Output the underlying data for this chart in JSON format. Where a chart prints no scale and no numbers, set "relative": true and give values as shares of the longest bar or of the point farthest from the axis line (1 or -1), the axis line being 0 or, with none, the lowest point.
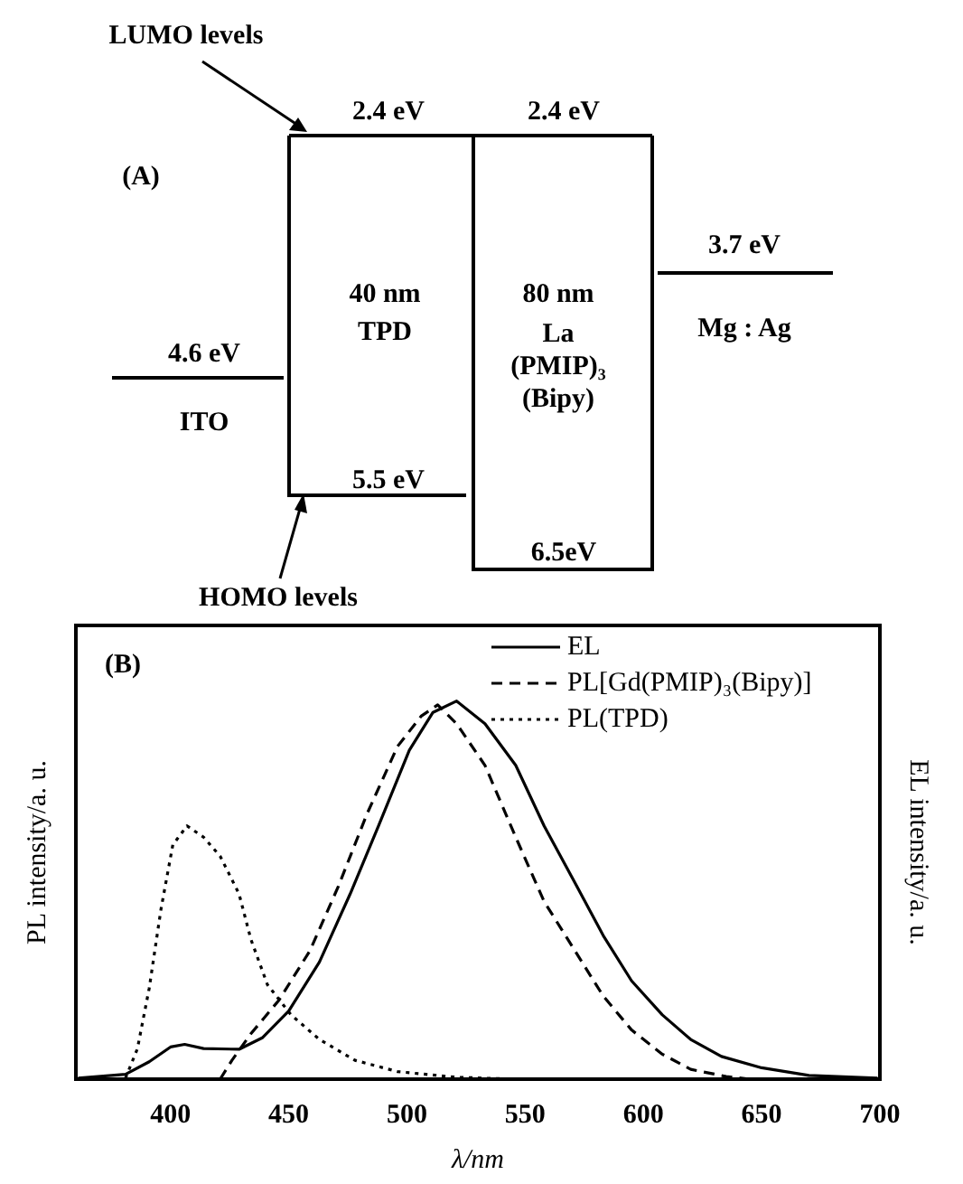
{
  "chart_data": [
    {
      "type": "other",
      "title": "(A)",
      "annotations": [
        "LUMO levels",
        "2.4 eV",
        "2.4 eV",
        "40 nm",
        "TPD",
        "80 nm",
        "La",
        "(PMIP)₃",
        "(Bipy)",
        "4.6 eV",
        "ITO",
        "3.7 eV",
        "Mg : Ag",
        "5.5 eV",
        "6.5eV",
        "HOMO levels"
      ]
    },
    {
      "type": "line",
      "title": "(B)",
      "xlabel": "λ/nm",
      "ylabel": "PL intensity/a. u.",
      "y2label": "EL intensity/a. u.",
      "relative": true,
      "xlim": [
        360,
        700
      ],
      "xticks": [
        400,
        450,
        500,
        550,
        600,
        650,
        700
      ],
      "grid": false,
      "legend": "top right",
      "series": [
        {
          "name": "EL",
          "color": "#000000",
          "line_style": "solid",
          "x": [
            361,
            381,
            391,
            400,
            406,
            414,
            429,
            439,
            450,
            463,
            476,
            488,
            501,
            511,
            521,
            533,
            546,
            558,
            571,
            583,
            595,
            608,
            620,
            633,
            650,
            670,
            699
          ],
          "values": [
            0.003,
            0.013,
            0.046,
            0.085,
            0.092,
            0.081,
            0.079,
            0.11,
            0.18,
            0.31,
            0.49,
            0.67,
            0.87,
            0.97,
            1.0,
            0.94,
            0.83,
            0.67,
            0.52,
            0.38,
            0.26,
            0.17,
            0.105,
            0.06,
            0.03,
            0.01,
            0.003
          ]
        },
        {
          "name": "PL[Gd(PMIP)₃(Bipy)]",
          "color": "#000000",
          "line_style": "dashed",
          "x": [
            421,
            426,
            434,
            446,
            459,
            471,
            483,
            496,
            506,
            513,
            521,
            533,
            546,
            558,
            571,
            583,
            595,
            608,
            620,
            635,
            645
          ],
          "values": [
            0,
            0.05,
            0.12,
            0.21,
            0.34,
            0.51,
            0.7,
            0.88,
            0.96,
            0.99,
            0.94,
            0.83,
            0.64,
            0.47,
            0.34,
            0.22,
            0.13,
            0.066,
            0.026,
            0.007,
            0
          ]
        },
        {
          "name": "PL(TPD)",
          "color": "#000000",
          "line_style": "dotted",
          "x": [
            381,
            386,
            391,
            396,
            401,
            407,
            414,
            421,
            429,
            434,
            441,
            451,
            463,
            478,
            496,
            521,
            546
          ],
          "values": [
            0.003,
            0.08,
            0.24,
            0.45,
            0.62,
            0.67,
            0.64,
            0.59,
            0.49,
            0.37,
            0.25,
            0.17,
            0.105,
            0.05,
            0.02,
            0.005,
            0
          ]
        }
      ]
    }
  ]
}
